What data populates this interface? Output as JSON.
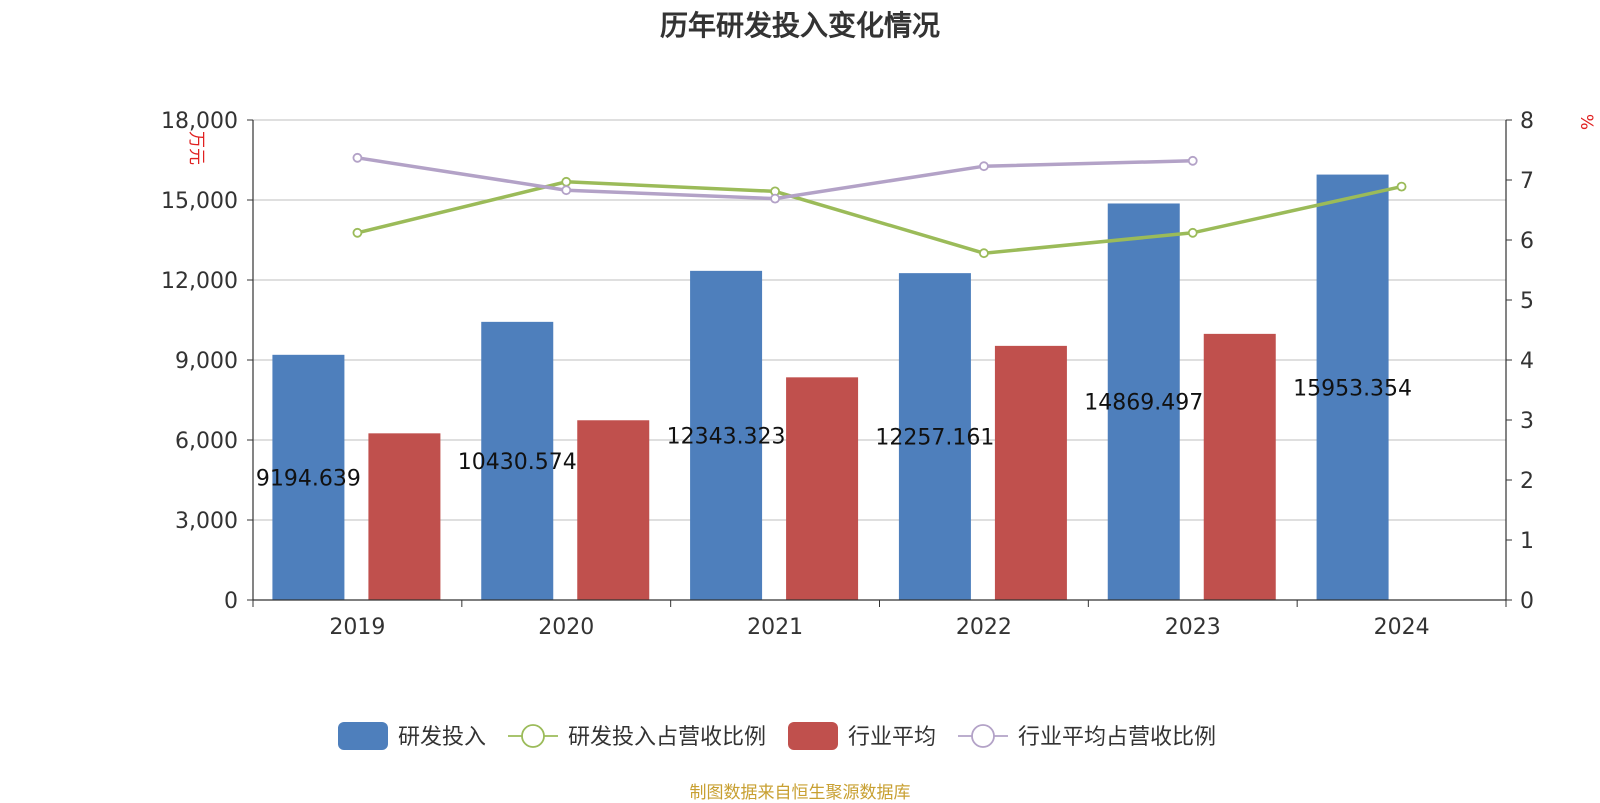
{
  "title": "历年研发投入变化情况",
  "source": "制图数据来自恒生聚源数据库",
  "chart_data": {
    "type": "bar",
    "categories": [
      "2019",
      "2020",
      "2021",
      "2022",
      "2023",
      "2024"
    ],
    "y_left": {
      "label": "万元",
      "min": 0,
      "max": 18000,
      "ticks": [
        0,
        3000,
        6000,
        9000,
        12000,
        15000,
        18000
      ],
      "tick_labels": [
        "0",
        "3,000",
        "6,000",
        "9,000",
        "12,000",
        "15,000",
        "18,000"
      ]
    },
    "y_right": {
      "label": "%",
      "min": 0,
      "max": 8,
      "ticks": [
        0,
        1,
        2,
        3,
        4,
        5,
        6,
        7,
        8
      ],
      "tick_labels": [
        "0",
        "1",
        "2",
        "3",
        "4",
        "5",
        "6",
        "7",
        "8"
      ]
    },
    "series": [
      {
        "name": "研发投入",
        "type": "bar",
        "axis": "left",
        "color": "#4e7fbc",
        "values": [
          9194.639,
          10430.574,
          12343.323,
          12257.161,
          14869.497,
          15953.354
        ],
        "labels": [
          "9194.639",
          "10430.574",
          "12343.323",
          "12257.161",
          "14869.497",
          "15953.354"
        ]
      },
      {
        "name": "研发投入占营收比例",
        "type": "line",
        "axis": "right",
        "color": "#9bbb59",
        "values": [
          6.12,
          6.97,
          6.81,
          5.78,
          6.12,
          6.89
        ]
      },
      {
        "name": "行业平均",
        "type": "bar",
        "axis": "left",
        "color": "#c0504d",
        "values": [
          6250,
          6740,
          8350,
          9530,
          9980,
          null
        ]
      },
      {
        "name": "行业平均占营收比例",
        "type": "line",
        "axis": "right",
        "color": "#b3a2c7",
        "values": [
          7.37,
          6.83,
          6.69,
          7.23,
          7.32,
          null
        ]
      }
    ],
    "legend_position": "bottom",
    "grid": true
  }
}
